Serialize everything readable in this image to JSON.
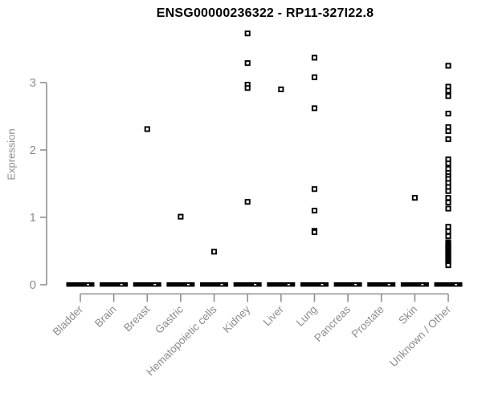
{
  "chart_data": {
    "type": "scatter",
    "subtype": "strip-plot-by-category",
    "title": "ENSG00000236322 - RP11-327I22.8",
    "xlabel": "",
    "ylabel": "Expression",
    "ylim": [
      0,
      3.9
    ],
    "yticks": [
      0,
      1,
      2,
      3
    ],
    "grid": false,
    "legend_position": "none",
    "marker": "open-square",
    "colors": {
      "marker": "#000000",
      "zero_dash": "#000000",
      "axis_line": "#8f8f8f",
      "tick_text": "#8c8c8c",
      "title_text": "#000000",
      "background": "#ffffff"
    },
    "categories": [
      "Bladder",
      "Brain",
      "Breast",
      "Gastric",
      "Hematopoietic cells",
      "Kidney",
      "Liver",
      "Lung",
      "Pancreas",
      "Prostate",
      "Skin",
      "Unknown / Other"
    ],
    "series": [
      {
        "category": "Bladder",
        "zero_cluster": true,
        "values": []
      },
      {
        "category": "Brain",
        "zero_cluster": true,
        "values": []
      },
      {
        "category": "Breast",
        "zero_cluster": true,
        "values": [
          2.31
        ]
      },
      {
        "category": "Gastric",
        "zero_cluster": true,
        "values": [
          1.01
        ]
      },
      {
        "category": "Hematopoietic cells",
        "zero_cluster": true,
        "values": [
          0.49
        ]
      },
      {
        "category": "Kidney",
        "zero_cluster": true,
        "values": [
          3.73,
          3.29,
          2.97,
          2.92,
          1.23
        ]
      },
      {
        "category": "Liver",
        "zero_cluster": true,
        "values": [
          2.9
        ]
      },
      {
        "category": "Lung",
        "zero_cluster": true,
        "values": [
          3.37,
          3.08,
          2.62,
          1.42,
          1.1,
          0.8,
          0.78
        ]
      },
      {
        "category": "Pancreas",
        "zero_cluster": true,
        "values": []
      },
      {
        "category": "Prostate",
        "zero_cluster": true,
        "values": []
      },
      {
        "category": "Skin",
        "zero_cluster": true,
        "values": [
          1.29
        ]
      },
      {
        "category": "Unknown / Other",
        "zero_cluster": true,
        "values": [
          3.25,
          2.94,
          2.88,
          2.8,
          2.54,
          2.34,
          2.28,
          2.16,
          1.86,
          1.8,
          1.72,
          1.66,
          1.61,
          1.57,
          1.51,
          1.45,
          1.39,
          1.29,
          1.22,
          1.13,
          0.86,
          0.79,
          0.72,
          0.63,
          0.61,
          0.59,
          0.57,
          0.55,
          0.53,
          0.51,
          0.49,
          0.47,
          0.45,
          0.43,
          0.41,
          0.39,
          0.37,
          0.35,
          0.33,
          0.31,
          0.29
        ]
      }
    ]
  }
}
